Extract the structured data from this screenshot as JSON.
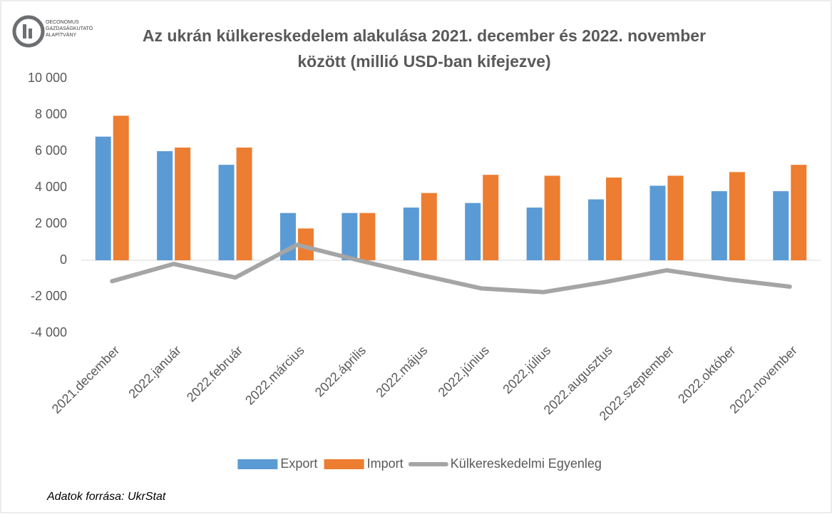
{
  "logo": {
    "lines": [
      "OECONOMUS",
      "GAZDASÁGKUTATÓ",
      "ALAPÍTVÁNY"
    ]
  },
  "source": "Adatok forrása: UkrStat",
  "chart_data": {
    "type": "bar_line",
    "title": [
      "Az ukrán külkereskedelem alakulása 2021. december és 2022. november",
      "között (millió USD-ban kifejezve)"
    ],
    "categories": [
      "2021.december",
      "2022.január",
      "2022.február",
      "2022.március",
      "2022.április",
      "2022.május",
      "2022.június",
      "2022.július",
      "2022.augusztus",
      "2022.szeptember",
      "2022.október",
      "2022.november"
    ],
    "series": [
      {
        "name": "Export",
        "color": "#5b9bd5",
        "kind": "bar",
        "values": [
          6800,
          6000,
          5250,
          2600,
          2600,
          2900,
          3150,
          2900,
          3350,
          4100,
          3800,
          3800
        ]
      },
      {
        "name": "Import",
        "color": "#ed7d31",
        "kind": "bar",
        "values": [
          7950,
          6200,
          6200,
          1750,
          2600,
          3700,
          4700,
          4650,
          4550,
          4650,
          4850,
          5250
        ]
      },
      {
        "name": "Külkereskedelmi Egyenleg",
        "color": "#a5a5a5",
        "kind": "line",
        "values": [
          -1150,
          -200,
          -950,
          850,
          0,
          -800,
          -1550,
          -1750,
          -1200,
          -550,
          -1050,
          -1450
        ]
      }
    ],
    "ylim": [
      -4000,
      10000
    ],
    "yticks": [
      {
        "value": -4000,
        "label": "-4 000"
      },
      {
        "value": -2000,
        "label": "-2 000"
      },
      0,
      {
        "value": 2000,
        "label": "2 000"
      },
      {
        "value": 4000,
        "label": "4 000"
      },
      {
        "value": 6000,
        "label": "6 000"
      },
      {
        "value": 8000,
        "label": "8 000"
      },
      {
        "value": 10000,
        "label": "10 000"
      }
    ],
    "legend": "bottom"
  }
}
